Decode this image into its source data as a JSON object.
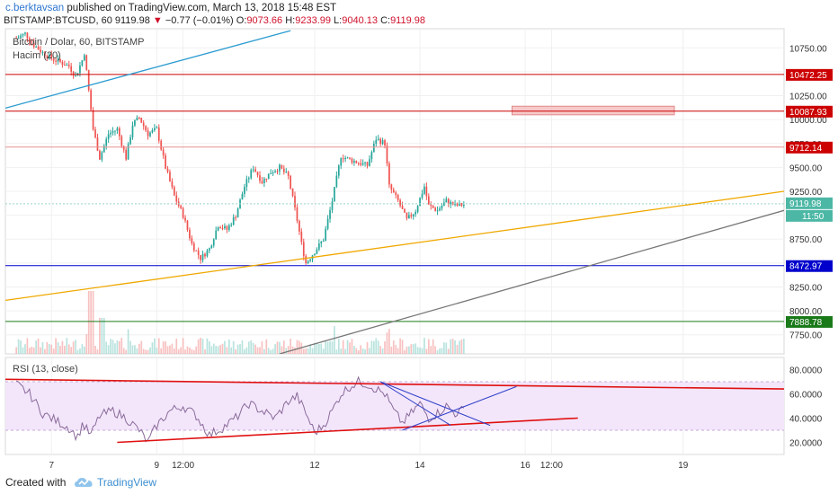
{
  "header": {
    "author": "c.berktavsan",
    "published_text": "published on TradingView.com, March 13, 2018 15:48 EST",
    "symbol": "BITSTAMP:BTCUSD, 60",
    "last": "9119.98",
    "change_arrow": "▼",
    "change": "−0.77 (−0.01%)",
    "o_label": "O:",
    "o_value": "9073.66",
    "h_label": "H:",
    "h_value": "9233.99",
    "l_label": "L:",
    "l_value": "9040.13",
    "c_label": "C:",
    "c_value": "9119.98"
  },
  "footer": {
    "created_with": "Created with",
    "brand": "TradingView"
  },
  "colors": {
    "up": "#26a69a",
    "down": "#ef5350",
    "resistance": "#cc0000",
    "support": "#0000cc",
    "green_level": "#1a7a1a",
    "trend_orange": "#f0a800",
    "trend_blue": "#2b9bd0",
    "trend_gray": "#777777",
    "rsi_line": "#8a6a9a",
    "rsi_band": "#f3e6fb"
  },
  "chart_data": [
    {
      "type": "candlestick",
      "title": "Bitcoin / Dolar, 60, BITSTAMP",
      "subtitle": "Hacim (20)",
      "ylim": [
        7550,
        10950
      ],
      "y_ticks": [
        7750,
        8000,
        8250,
        8500,
        8750,
        9000,
        9250,
        9500,
        9750,
        10000,
        10250,
        10500,
        10750
      ],
      "x_ticks": [
        {
          "label": "7",
          "hour": 16
        },
        {
          "label": "9",
          "hour": 64
        },
        {
          "label": "12:00",
          "hour": 76
        },
        {
          "label": "12",
          "hour": 136
        },
        {
          "label": "14",
          "hour": 184
        },
        {
          "label": "16",
          "hour": 232
        },
        {
          "label": "12:00",
          "hour": 244
        },
        {
          "label": "19",
          "hour": 304
        }
      ],
      "x_range_hours": [
        -5,
        350
      ],
      "anchors": [
        {
          "h": 0,
          "p": 10850
        },
        {
          "h": 4,
          "p": 10900
        },
        {
          "h": 8,
          "p": 10780
        },
        {
          "h": 12,
          "p": 10700
        },
        {
          "h": 16,
          "p": 10640
        },
        {
          "h": 20,
          "p": 10600
        },
        {
          "h": 24,
          "p": 10560
        },
        {
          "h": 27,
          "p": 10450
        },
        {
          "h": 30,
          "p": 10620
        },
        {
          "h": 31,
          "p": 10700
        },
        {
          "h": 33,
          "p": 10300
        },
        {
          "h": 35,
          "p": 9900
        },
        {
          "h": 38,
          "p": 9600
        },
        {
          "h": 42,
          "p": 9850
        },
        {
          "h": 46,
          "p": 9900
        },
        {
          "h": 50,
          "p": 9600
        },
        {
          "h": 53,
          "p": 9950
        },
        {
          "h": 56,
          "p": 10020
        },
        {
          "h": 60,
          "p": 9850
        },
        {
          "h": 64,
          "p": 9900
        },
        {
          "h": 68,
          "p": 9500
        },
        {
          "h": 72,
          "p": 9200
        },
        {
          "h": 76,
          "p": 9000
        },
        {
          "h": 80,
          "p": 8700
        },
        {
          "h": 84,
          "p": 8550
        },
        {
          "h": 88,
          "p": 8650
        },
        {
          "h": 92,
          "p": 8900
        },
        {
          "h": 96,
          "p": 8850
        },
        {
          "h": 100,
          "p": 9000
        },
        {
          "h": 104,
          "p": 9300
        },
        {
          "h": 108,
          "p": 9500
        },
        {
          "h": 112,
          "p": 9350
        },
        {
          "h": 116,
          "p": 9450
        },
        {
          "h": 120,
          "p": 9500
        },
        {
          "h": 124,
          "p": 9400
        },
        {
          "h": 128,
          "p": 8950
        },
        {
          "h": 130,
          "p": 8700
        },
        {
          "h": 132,
          "p": 8500
        },
        {
          "h": 136,
          "p": 8620
        },
        {
          "h": 140,
          "p": 8750
        },
        {
          "h": 144,
          "p": 9150
        },
        {
          "h": 148,
          "p": 9620
        },
        {
          "h": 152,
          "p": 9580
        },
        {
          "h": 156,
          "p": 9550
        },
        {
          "h": 160,
          "p": 9520
        },
        {
          "h": 164,
          "p": 9800
        },
        {
          "h": 168,
          "p": 9750
        },
        {
          "h": 170,
          "p": 9300
        },
        {
          "h": 174,
          "p": 9150
        },
        {
          "h": 178,
          "p": 8950
        },
        {
          "h": 182,
          "p": 9050
        },
        {
          "h": 186,
          "p": 9300
        },
        {
          "h": 188,
          "p": 9100
        },
        {
          "h": 192,
          "p": 9050
        },
        {
          "h": 196,
          "p": 9150
        },
        {
          "h": 200,
          "p": 9100
        },
        {
          "h": 204,
          "p": 9110
        }
      ],
      "horizontal_levels": [
        {
          "price": 10472.25,
          "label": "10472.25",
          "kind": "resistance"
        },
        {
          "price": 10087.93,
          "label": "10087.93",
          "kind": "resistance"
        },
        {
          "price": 9712.14,
          "label": "9712.14",
          "kind": "resistance_light"
        },
        {
          "price": 8472.97,
          "label": "8472.97",
          "kind": "support"
        },
        {
          "price": 7888.78,
          "label": "7888.78",
          "kind": "green"
        }
      ],
      "last_price_label": "9119.98",
      "countdown_label": "11:50",
      "zone": {
        "h0": 226,
        "h1": 300,
        "p0": 10050,
        "p1": 10140
      },
      "trendlines": [
        {
          "kind": "orange",
          "from": {
            "h": -5,
            "p": 8110
          },
          "to": {
            "h": 350,
            "p": 9250
          }
        },
        {
          "kind": "blue",
          "from": {
            "h": -5,
            "p": 10120
          },
          "to": {
            "h": 125,
            "p": 10930
          }
        },
        {
          "kind": "gray",
          "from": {
            "h": 120,
            "p": 7550
          },
          "to": {
            "h": 350,
            "p": 9050
          }
        }
      ]
    },
    {
      "type": "line",
      "title": "RSI (13, close)",
      "ylim": [
        10,
        90
      ],
      "y_ticks": [
        20,
        40,
        60,
        80
      ],
      "y_tick_labels": [
        "20.0000",
        "40.0000",
        "60.0000",
        "80.0000"
      ],
      "band": [
        30,
        70
      ],
      "anchors": [
        {
          "h": 0,
          "v": 68
        },
        {
          "h": 6,
          "v": 60
        },
        {
          "h": 12,
          "v": 44
        },
        {
          "h": 18,
          "v": 38
        },
        {
          "h": 24,
          "v": 32
        },
        {
          "h": 28,
          "v": 24
        },
        {
          "h": 30,
          "v": 35
        },
        {
          "h": 34,
          "v": 26
        },
        {
          "h": 38,
          "v": 42
        },
        {
          "h": 44,
          "v": 46
        },
        {
          "h": 50,
          "v": 40
        },
        {
          "h": 56,
          "v": 30
        },
        {
          "h": 60,
          "v": 20
        },
        {
          "h": 64,
          "v": 34
        },
        {
          "h": 70,
          "v": 46
        },
        {
          "h": 76,
          "v": 50
        },
        {
          "h": 82,
          "v": 42
        },
        {
          "h": 88,
          "v": 26
        },
        {
          "h": 94,
          "v": 32
        },
        {
          "h": 100,
          "v": 40
        },
        {
          "h": 106,
          "v": 52
        },
        {
          "h": 112,
          "v": 46
        },
        {
          "h": 118,
          "v": 40
        },
        {
          "h": 124,
          "v": 54
        },
        {
          "h": 128,
          "v": 58
        },
        {
          "h": 132,
          "v": 44
        },
        {
          "h": 136,
          "v": 28
        },
        {
          "h": 140,
          "v": 34
        },
        {
          "h": 144,
          "v": 46
        },
        {
          "h": 148,
          "v": 60
        },
        {
          "h": 152,
          "v": 66
        },
        {
          "h": 156,
          "v": 70
        },
        {
          "h": 160,
          "v": 68
        },
        {
          "h": 164,
          "v": 64
        },
        {
          "h": 168,
          "v": 60
        },
        {
          "h": 172,
          "v": 46
        },
        {
          "h": 176,
          "v": 36
        },
        {
          "h": 180,
          "v": 44
        },
        {
          "h": 184,
          "v": 52
        },
        {
          "h": 188,
          "v": 40
        },
        {
          "h": 192,
          "v": 44
        },
        {
          "h": 196,
          "v": 50
        },
        {
          "h": 200,
          "v": 44
        },
        {
          "h": 204,
          "v": 47
        }
      ],
      "trendlines": [
        {
          "kind": "red",
          "from": {
            "h": -5,
            "v": 72
          },
          "to": {
            "h": 350,
            "v": 64
          }
        },
        {
          "kind": "red",
          "from": {
            "h": 46,
            "v": 20
          },
          "to": {
            "h": 256,
            "v": 40
          }
        },
        {
          "kind": "blue",
          "from": {
            "h": 166,
            "v": 70
          },
          "to": {
            "h": 198,
            "v": 34
          }
        },
        {
          "kind": "blue",
          "from": {
            "h": 166,
            "v": 70
          },
          "to": {
            "h": 216,
            "v": 34
          }
        },
        {
          "kind": "blue",
          "from": {
            "h": 176,
            "v": 30
          },
          "to": {
            "h": 228,
            "v": 66
          }
        }
      ]
    }
  ]
}
